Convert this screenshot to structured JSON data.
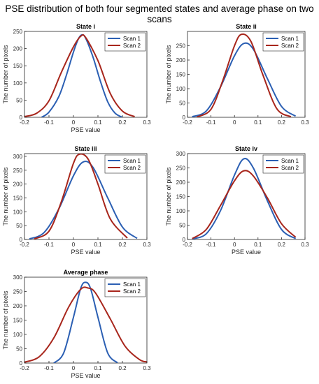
{
  "figure_title": "PSE distribution of both four segmented states and average phase on two scans",
  "colors": {
    "scan1": "#2b5fb3",
    "scan2": "#a8261c"
  },
  "chart_data": [
    {
      "type": "line",
      "title": "State i",
      "xlabel": "PSE value",
      "ylabel": "The number of pixels",
      "xlim": [
        -0.2,
        0.3
      ],
      "ylim": [
        0,
        250
      ],
      "xticks": [
        -0.2,
        -0.1,
        0,
        0.1,
        0.2,
        0.3
      ],
      "xtick_labels": [
        "-0.2",
        "-0.1",
        "0",
        "0.1",
        "0.2",
        "0.3"
      ],
      "yticks": [
        0,
        50,
        100,
        150,
        200,
        250
      ],
      "ytick_labels": [
        "0",
        "50",
        "100",
        "150",
        "200",
        "250"
      ],
      "legend": "top-right",
      "series": [
        {
          "name": "Scan 1",
          "color": "#2b5fb3",
          "x": [
            -0.13,
            -0.1,
            -0.06,
            -0.03,
            0,
            0.02,
            0.035,
            0.05,
            0.08,
            0.11,
            0.14,
            0.17,
            0.2
          ],
          "y": [
            0,
            15,
            60,
            120,
            190,
            228,
            240,
            230,
            175,
            105,
            45,
            12,
            0
          ]
        },
        {
          "name": "Scan 2",
          "color": "#a8261c",
          "x": [
            -0.2,
            -0.15,
            -0.1,
            -0.05,
            0,
            0.03,
            0.05,
            0.1,
            0.15,
            0.2,
            0.25
          ],
          "y": [
            2,
            12,
            48,
            130,
            205,
            236,
            232,
            165,
            70,
            18,
            2
          ]
        }
      ]
    },
    {
      "type": "line",
      "title": "State ii",
      "xlabel": "",
      "ylabel": "The number of pixels",
      "xlim": [
        -0.2,
        0.3
      ],
      "ylim": [
        0,
        300
      ],
      "xticks": [
        -0.2,
        -0.1,
        0,
        0.1,
        0.2,
        0.3
      ],
      "xtick_labels": [
        "-0.2",
        "-0.1",
        "0",
        "0.1",
        "0.2",
        "0.3"
      ],
      "yticks": [
        0,
        50,
        100,
        150,
        200,
        250
      ],
      "ytick_labels": [
        "0",
        "50",
        "100",
        "150",
        "200",
        "250"
      ],
      "legend": "top-right",
      "series": [
        {
          "name": "Scan 1",
          "color": "#2b5fb3",
          "x": [
            -0.18,
            -0.12,
            -0.06,
            0,
            0.04,
            0.08,
            0.14,
            0.2,
            0.26
          ],
          "y": [
            2,
            22,
            105,
            215,
            258,
            238,
            135,
            38,
            4
          ]
        },
        {
          "name": "Scan 2",
          "color": "#a8261c",
          "x": [
            -0.16,
            -0.1,
            -0.05,
            0,
            0.03,
            0.07,
            0.12,
            0.18,
            0.24
          ],
          "y": [
            1,
            28,
            128,
            250,
            290,
            265,
            150,
            30,
            2
          ]
        }
      ]
    },
    {
      "type": "line",
      "title": "State iii",
      "xlabel": "PSE value",
      "ylabel": "The number of pixels",
      "xlim": [
        -0.2,
        0.3
      ],
      "ylim": [
        0,
        310
      ],
      "xticks": [
        -0.2,
        -0.1,
        0,
        0.1,
        0.2,
        0.3
      ],
      "xtick_labels": [
        "-0.2",
        "-0.1",
        "0",
        "0.1",
        "0.2",
        "0.3"
      ],
      "yticks": [
        0,
        50,
        100,
        150,
        200,
        250,
        300
      ],
      "ytick_labels": [
        "0",
        "50",
        "100",
        "150",
        "200",
        "250",
        "300"
      ],
      "legend": "top-right",
      "series": [
        {
          "name": "Scan 1",
          "color": "#2b5fb3",
          "x": [
            -0.18,
            -0.12,
            -0.06,
            0,
            0.04,
            0.08,
            0.14,
            0.2,
            0.26
          ],
          "y": [
            2,
            25,
            110,
            230,
            280,
            260,
            150,
            45,
            4
          ]
        },
        {
          "name": "Scan 2",
          "color": "#a8261c",
          "x": [
            -0.16,
            -0.1,
            -0.05,
            0,
            0.025,
            0.06,
            0.1,
            0.15,
            0.22
          ],
          "y": [
            2,
            30,
            135,
            275,
            308,
            290,
            200,
            75,
            5
          ]
        }
      ]
    },
    {
      "type": "line",
      "title": "State iv",
      "xlabel": "PSE value",
      "ylabel": "The number of pixels",
      "xlim": [
        -0.2,
        0.3
      ],
      "ylim": [
        0,
        300
      ],
      "xticks": [
        -0.2,
        -0.1,
        0,
        0.1,
        0.2,
        0.3
      ],
      "xtick_labels": [
        "-0.2",
        "-0.1",
        "0",
        "0.1",
        "0.2",
        "0.3"
      ],
      "yticks": [
        0,
        50,
        100,
        150,
        200,
        250,
        300
      ],
      "ytick_labels": [
        "0",
        "50",
        "100",
        "150",
        "200",
        "250",
        "300"
      ],
      "legend": "top-right",
      "series": [
        {
          "name": "Scan 1",
          "color": "#2b5fb3",
          "x": [
            -0.18,
            -0.12,
            -0.06,
            0,
            0.04,
            0.08,
            0.14,
            0.2,
            0.26
          ],
          "y": [
            2,
            20,
            100,
            225,
            282,
            250,
            135,
            35,
            3
          ]
        },
        {
          "name": "Scan 2",
          "color": "#a8261c",
          "x": [
            -0.18,
            -0.12,
            -0.06,
            0,
            0.04,
            0.08,
            0.14,
            0.2,
            0.26
          ],
          "y": [
            3,
            35,
            118,
            205,
            240,
            222,
            145,
            55,
            8
          ]
        }
      ]
    },
    {
      "type": "line",
      "title": "Average phase",
      "xlabel": "PSE value",
      "ylabel": "The number of pixels",
      "xlim": [
        -0.2,
        0.3
      ],
      "ylim": [
        0,
        300
      ],
      "xticks": [
        -0.2,
        -0.1,
        0,
        0.1,
        0.2,
        0.3
      ],
      "xtick_labels": [
        "-0.2",
        "-0.1",
        "0",
        "0.1",
        "0.2",
        "0.3"
      ],
      "yticks": [
        0,
        50,
        100,
        150,
        200,
        250,
        300
      ],
      "ytick_labels": [
        "0",
        "50",
        "100",
        "150",
        "200",
        "250",
        "300"
      ],
      "legend": "top-right",
      "series": [
        {
          "name": "Scan 1",
          "color": "#2b5fb3",
          "x": [
            -0.08,
            -0.04,
            0,
            0.03,
            0.05,
            0.07,
            0.1,
            0.14,
            0.18
          ],
          "y": [
            0,
            35,
            160,
            262,
            282,
            260,
            160,
            35,
            1
          ]
        },
        {
          "name": "Scan 2",
          "color": "#a8261c",
          "x": [
            -0.2,
            -0.14,
            -0.08,
            -0.02,
            0.03,
            0.06,
            0.09,
            0.15,
            0.21,
            0.27,
            0.3
          ],
          "y": [
            3,
            22,
            88,
            195,
            258,
            262,
            245,
            155,
            60,
            12,
            4
          ]
        }
      ]
    }
  ]
}
